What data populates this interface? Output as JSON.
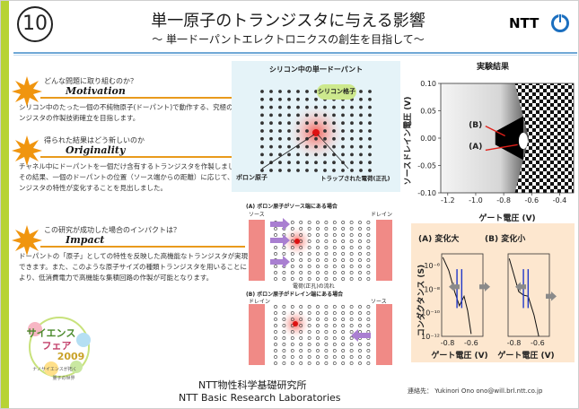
{
  "header": {
    "number": "10",
    "title": "単一原子のトランジスタに与える影響",
    "subtitle": "～ 単一ドーパントエレクトロニクスの創生を目指して～",
    "org_mark": "NTT"
  },
  "sections": [
    {
      "question": "どんな問題に取り組むのか？",
      "keyword": "Motivation",
      "body": "シリコン中のたった一個の不純物原子(ドーパント)で動作する、究極のトランジスタの作製技術確立を目指します。"
    },
    {
      "question": "得られた結果はどう新しいのか",
      "keyword": "Originality",
      "body": "チャネル中にドーパントを一個だけ含有するトランジスタを作製しました。その結果、一個のドーパントの位置（ソース端からの距離）に応じて、トランジスタの特性が変化することを見出しました。"
    },
    {
      "question": "この研究が成功した場合のインパクトは？",
      "keyword": "Impact",
      "body": "ドーパントの「原子」としての特性を反映した高機能なトランジスタが実現できます。また、このような原子サイズの種類トランジスタを用いることにより、低消費電力で高機能な集積回路の作製が可能となります。"
    }
  ],
  "lattice_figure": {
    "title": "シリコン中の単一ドーパント",
    "lattice_tag": "シリコン格子",
    "boron_label": "ボロン原子",
    "hole_label": "トラップされた電荷(正孔)"
  },
  "device_figure": {
    "case_a_title": "(A) ボロン原子がソース端にある場合",
    "case_b_title": "(B) ボロン原子がドレイン端にある場合",
    "source_label": "ソース",
    "drain_label": "ドレイン",
    "flow_caption": "電荷(正孔)の流れ"
  },
  "logo_text": [
    "サイエンス",
    "フェア",
    "2009",
    "ナノサイエンスが拓く",
    "量子の世界"
  ],
  "chart_data": [
    {
      "type": "heatmap",
      "title": "実験結果",
      "xlabel": "ゲート電圧 (V)",
      "ylabel": "ソースドレイン電圧 (V)",
      "xlim": [
        -1.25,
        -0.3
      ],
      "ylim": [
        -0.1,
        0.1
      ],
      "xticks": [
        "-1.2",
        "-1.0",
        "-0.8",
        "-0.6",
        "-0.4"
      ],
      "yticks": [
        "0.10",
        "0.05",
        "0.00",
        "-0.05",
        "-0.10"
      ],
      "annotations": [
        "(B)",
        "(A)"
      ]
    },
    {
      "type": "line",
      "subplots": [
        {
          "title": "(A) 変化大",
          "xlim": [
            -0.85,
            -0.5
          ]
        },
        {
          "title": "(B) 変化小",
          "xlim": [
            -0.85,
            -0.5
          ]
        }
      ],
      "xlabel": "ゲート電圧 (V)",
      "ylabel": "コンダクタンス (S)",
      "xticks": [
        "-0.8",
        "-0.6"
      ],
      "yticks": [
        "10⁻⁶",
        "10⁻⁸",
        "10⁻¹⁰",
        "10⁻¹²"
      ],
      "ylim_log10": [
        -12,
        -5
      ]
    }
  ],
  "footer": {
    "lab_ja": "NTT物性科学基礎研究所",
    "lab_en": "NTT Basic Research Laboratories",
    "contact_label": "連絡先：",
    "contact": "Yukinori Ono  ono@will.brl.ntt.co.jp"
  },
  "colors": {
    "accent_green": "#b7d334",
    "header_line": "#6fa8d6",
    "keyword_underline": "#e99a1c",
    "burst": "#f0950f",
    "lattice_bg": "#e5f3f8",
    "conductance_bg": "#fde7cf"
  }
}
